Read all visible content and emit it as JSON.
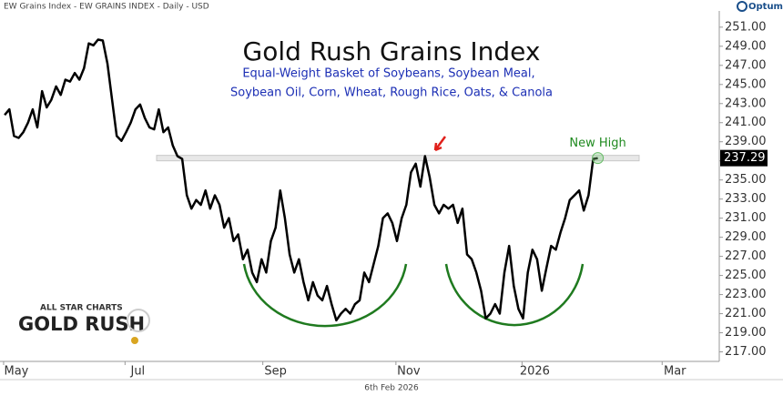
{
  "header": "EW Grains Index - EW GRAINS INDEX - Daily - USD",
  "brand": "Optuma",
  "footer_date": "6th Feb 2026",
  "logo": {
    "top": "ALL STAR CHARTS",
    "bottom": "GOLD RUSH"
  },
  "chart_data": {
    "type": "line",
    "title": "Gold Rush Grains Index",
    "subtitle": [
      "Equal-Weight Basket of Soybeans, Soybean Meal,",
      "Soybean Oil, Corn, Wheat, Rough Rice, Oats, & Canola"
    ],
    "annotation": "New High",
    "color": "#000000",
    "values": [
      241.8,
      242.4,
      239.6,
      239.4,
      240.0,
      241.0,
      242.4,
      240.5,
      244.3,
      242.6,
      243.4,
      244.8,
      243.9,
      245.5,
      245.3,
      246.2,
      245.5,
      246.7,
      249.3,
      249.1,
      249.7,
      249.6,
      247.2,
      243.4,
      239.6,
      239.1,
      240.0,
      241.0,
      242.4,
      242.9,
      241.5,
      240.5,
      240.3,
      242.4,
      240.0,
      240.5,
      238.6,
      237.5,
      237.2,
      233.4,
      232.0,
      232.9,
      232.4,
      233.9,
      232.0,
      233.4,
      232.4,
      230.0,
      231.0,
      228.6,
      229.3,
      226.7,
      227.7,
      225.3,
      224.3,
      226.7,
      225.3,
      228.6,
      230.0,
      233.9,
      231.0,
      227.2,
      225.3,
      226.7,
      224.3,
      222.4,
      224.3,
      222.9,
      222.4,
      223.9,
      222.0,
      220.3,
      221.0,
      221.5,
      221.0,
      222.0,
      222.4,
      225.3,
      224.3,
      226.2,
      228.1,
      231.0,
      231.5,
      230.5,
      228.6,
      231.0,
      232.4,
      235.8,
      236.7,
      234.3,
      237.5,
      235.3,
      232.4,
      231.5,
      232.4,
      232.0,
      232.4,
      230.5,
      232.0,
      227.2,
      226.7,
      225.3,
      223.4,
      220.5,
      221.0,
      222.0,
      221.0,
      225.3,
      228.1,
      223.9,
      221.5,
      220.5,
      225.3,
      227.7,
      226.7,
      223.4,
      225.8,
      228.1,
      227.7,
      229.5,
      231.0,
      232.9,
      233.4,
      233.9,
      231.8,
      233.4,
      237.2,
      237.29
    ],
    "xlim": [
      -1,
      153
    ],
    "xticks": [
      {
        "value": 2.5,
        "label": "May"
      },
      {
        "value": 28.5,
        "label": "Jul"
      },
      {
        "value": 58,
        "label": "Sep"
      },
      {
        "value": 86.5,
        "label": "Nov"
      },
      {
        "value": 113.5,
        "label": "2026"
      },
      {
        "value": 143.5,
        "label": "Mar"
      }
    ],
    "ylim": [
      216,
      252.7
    ],
    "yticks": [
      {
        "value": 217,
        "label": "217.00"
      },
      {
        "value": 219,
        "label": "219.00"
      },
      {
        "value": 221,
        "label": "221.00"
      },
      {
        "value": 223,
        "label": "223.00"
      },
      {
        "value": 225,
        "label": "225.00"
      },
      {
        "value": 227,
        "label": "227.00"
      },
      {
        "value": 229,
        "label": "229.00"
      },
      {
        "value": 231,
        "label": "231.00"
      },
      {
        "value": 233,
        "label": "233.00"
      },
      {
        "value": 235,
        "label": "235.00"
      },
      {
        "value": 237,
        "label": "237.00"
      },
      {
        "value": 239,
        "label": "239.00"
      },
      {
        "value": 241,
        "label": "241.00"
      },
      {
        "value": 243,
        "label": "243.00"
      },
      {
        "value": 245,
        "label": "245.00"
      },
      {
        "value": 247,
        "label": "247.00"
      },
      {
        "value": 249,
        "label": "249.00"
      },
      {
        "value": 251,
        "label": "251.00"
      }
    ]
  }
}
